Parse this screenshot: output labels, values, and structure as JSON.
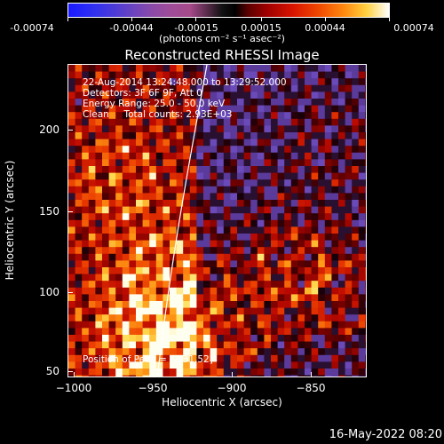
{
  "colorbar": {
    "tick_labels": [
      "-0.00074",
      "-0.00044",
      "-0.00015",
      "0.00015",
      "0.00044",
      "0.00074"
    ],
    "units": "(photons cm⁻² s⁻¹ asec⁻²)"
  },
  "title": "Reconstructed RHESSI Image",
  "annotations": {
    "time_range": "22-Aug-2014 13:24:48.000 to 13:29:52.000",
    "detectors": "Detectors: 3F 6F 9F, Att 0",
    "energy": "Energy Range: 25.0 - 50.0 keV",
    "clean": "Clean     Total counts: 2.93E+03",
    "peak": "Position of Peak = [-931,52]"
  },
  "axes": {
    "x_ticks": [
      "−1000",
      "−950",
      "−900",
      "−850"
    ],
    "y_ticks": [
      "200",
      "150",
      "100",
      "50"
    ],
    "xlabel": "Heliocentric X (arcsec)",
    "ylabel": "Heliocentric Y (arcsec)",
    "xlim": [
      -1000,
      -810
    ],
    "ylim": [
      45,
      235
    ]
  },
  "timestamp": "16-May-2022 08:20",
  "colors": {
    "limb_line": "#ffffff",
    "background": "#000000"
  }
}
